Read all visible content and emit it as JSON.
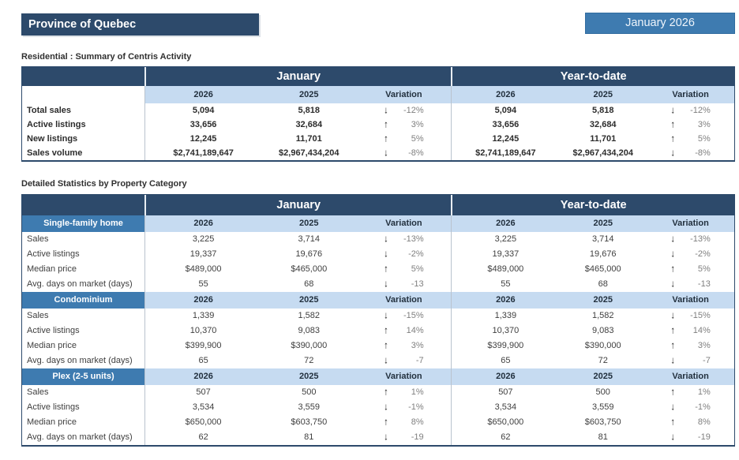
{
  "header": {
    "region": "Province of Quebec",
    "period": "January 2026"
  },
  "colors": {
    "navy": "#2d4a6b",
    "mid_blue": "#3e7bb0",
    "light_blue": "#c6dbf1",
    "divider": "#b9c3ce",
    "variation_text": "#7f7f7f"
  },
  "summary": {
    "section_title": "Residential : Summary of Centris Activity",
    "col_groups": [
      "January",
      "Year-to-date"
    ],
    "col_headers": [
      "2026",
      "2025",
      "Variation"
    ],
    "rows": [
      {
        "label": "Total sales",
        "jan": {
          "y2026": "5,094",
          "y2025": "5,818",
          "dir": "down",
          "var": "-12%"
        },
        "ytd": {
          "y2026": "5,094",
          "y2025": "5,818",
          "dir": "down",
          "var": "-12%"
        }
      },
      {
        "label": "Active listings",
        "jan": {
          "y2026": "33,656",
          "y2025": "32,684",
          "dir": "up",
          "var": "3%"
        },
        "ytd": {
          "y2026": "33,656",
          "y2025": "32,684",
          "dir": "up",
          "var": "3%"
        }
      },
      {
        "label": "New listings",
        "jan": {
          "y2026": "12,245",
          "y2025": "11,701",
          "dir": "up",
          "var": "5%"
        },
        "ytd": {
          "y2026": "12,245",
          "y2025": "11,701",
          "dir": "up",
          "var": "5%"
        }
      },
      {
        "label": "Sales volume",
        "jan": {
          "y2026": "$2,741,189,647",
          "y2025": "$2,967,434,204",
          "dir": "down",
          "var": "-8%"
        },
        "ytd": {
          "y2026": "$2,741,189,647",
          "y2025": "$2,967,434,204",
          "dir": "down",
          "var": "-8%"
        }
      }
    ]
  },
  "detailed": {
    "section_title": "Detailed Statistics by Property Category",
    "col_groups": [
      "January",
      "Year-to-date"
    ],
    "col_headers": [
      "2026",
      "2025",
      "Variation"
    ],
    "categories": [
      {
        "name": "Single-family home",
        "rows": [
          {
            "label": "Sales",
            "jan": {
              "y2026": "3,225",
              "y2025": "3,714",
              "dir": "down",
              "var": "-13%"
            },
            "ytd": {
              "y2026": "3,225",
              "y2025": "3,714",
              "dir": "down",
              "var": "-13%"
            }
          },
          {
            "label": "Active listings",
            "jan": {
              "y2026": "19,337",
              "y2025": "19,676",
              "dir": "down",
              "var": "-2%"
            },
            "ytd": {
              "y2026": "19,337",
              "y2025": "19,676",
              "dir": "down",
              "var": "-2%"
            }
          },
          {
            "label": "Median price",
            "jan": {
              "y2026": "$489,000",
              "y2025": "$465,000",
              "dir": "up",
              "var": "5%"
            },
            "ytd": {
              "y2026": "$489,000",
              "y2025": "$465,000",
              "dir": "up",
              "var": "5%"
            }
          },
          {
            "label": "Avg. days on market (days)",
            "jan": {
              "y2026": "55",
              "y2025": "68",
              "dir": "down",
              "var": "-13"
            },
            "ytd": {
              "y2026": "55",
              "y2025": "68",
              "dir": "down",
              "var": "-13"
            }
          }
        ]
      },
      {
        "name": "Condominium",
        "rows": [
          {
            "label": "Sales",
            "jan": {
              "y2026": "1,339",
              "y2025": "1,582",
              "dir": "down",
              "var": "-15%"
            },
            "ytd": {
              "y2026": "1,339",
              "y2025": "1,582",
              "dir": "down",
              "var": "-15%"
            }
          },
          {
            "label": "Active listings",
            "jan": {
              "y2026": "10,370",
              "y2025": "9,083",
              "dir": "up",
              "var": "14%"
            },
            "ytd": {
              "y2026": "10,370",
              "y2025": "9,083",
              "dir": "up",
              "var": "14%"
            }
          },
          {
            "label": "Median price",
            "jan": {
              "y2026": "$399,900",
              "y2025": "$390,000",
              "dir": "up",
              "var": "3%"
            },
            "ytd": {
              "y2026": "$399,900",
              "y2025": "$390,000",
              "dir": "up",
              "var": "3%"
            }
          },
          {
            "label": "Avg. days on market (days)",
            "jan": {
              "y2026": "65",
              "y2025": "72",
              "dir": "down",
              "var": "-7"
            },
            "ytd": {
              "y2026": "65",
              "y2025": "72",
              "dir": "down",
              "var": "-7"
            }
          }
        ]
      },
      {
        "name": "Plex (2-5 units)",
        "rows": [
          {
            "label": "Sales",
            "jan": {
              "y2026": "507",
              "y2025": "500",
              "dir": "up",
              "var": "1%"
            },
            "ytd": {
              "y2026": "507",
              "y2025": "500",
              "dir": "up",
              "var": "1%"
            }
          },
          {
            "label": "Active listings",
            "jan": {
              "y2026": "3,534",
              "y2025": "3,559",
              "dir": "down",
              "var": "-1%"
            },
            "ytd": {
              "y2026": "3,534",
              "y2025": "3,559",
              "dir": "down",
              "var": "-1%"
            }
          },
          {
            "label": "Median price",
            "jan": {
              "y2026": "$650,000",
              "y2025": "$603,750",
              "dir": "up",
              "var": "8%"
            },
            "ytd": {
              "y2026": "$650,000",
              "y2025": "$603,750",
              "dir": "up",
              "var": "8%"
            }
          },
          {
            "label": "Avg. days on market (days)",
            "jan": {
              "y2026": "62",
              "y2025": "81",
              "dir": "down",
              "var": "-19"
            },
            "ytd": {
              "y2026": "62",
              "y2025": "81",
              "dir": "down",
              "var": "-19"
            }
          }
        ]
      }
    ]
  },
  "icons": {
    "up": "arrow-up-icon",
    "down": "arrow-down-icon"
  }
}
